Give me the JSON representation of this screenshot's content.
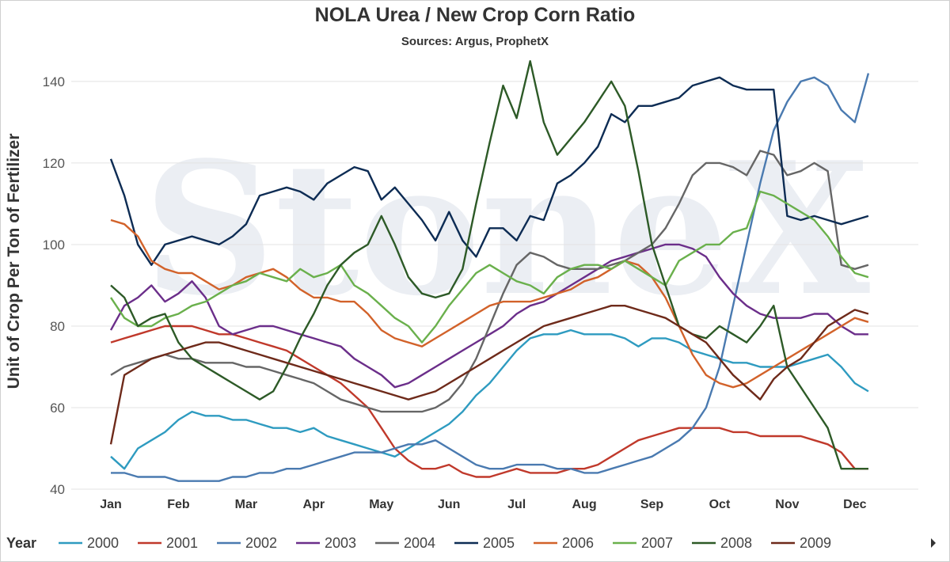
{
  "chart_data": {
    "type": "line",
    "title": "NOLA Urea / New Crop Corn Ratio",
    "subtitle": "Sources: Argus, ProphetX",
    "ylabel": "Unit of Crop Per Ton of Fertilizer",
    "xlabel": "",
    "legend_title": "Year",
    "legend_position": "bottom",
    "grid": "horizontal",
    "ylim": [
      40,
      146
    ],
    "yticks": [
      40,
      60,
      80,
      100,
      120,
      140
    ],
    "ytick_labels": [
      "40",
      "60",
      "80",
      "100",
      "120",
      "140"
    ],
    "x_range": [
      0,
      11.4
    ],
    "categories": [
      "Jan",
      "Feb",
      "Mar",
      "Apr",
      "May",
      "Jun",
      "Jul",
      "Aug",
      "Sep",
      "Oct",
      "Nov",
      "Dec"
    ],
    "watermark": "StoneX",
    "x": [
      0,
      0.2,
      0.4,
      0.6,
      0.8,
      1,
      1.2,
      1.4,
      1.6,
      1.8,
      2,
      2.2,
      2.4,
      2.6,
      2.8,
      3,
      3.2,
      3.4,
      3.6,
      3.8,
      4,
      4.2,
      4.4,
      4.6,
      4.8,
      5,
      5.2,
      5.4,
      5.6,
      5.8,
      6,
      6.2,
      6.4,
      6.6,
      6.8,
      7,
      7.2,
      7.4,
      7.6,
      7.8,
      8,
      8.2,
      8.4,
      8.6,
      8.8,
      9,
      9.2,
      9.4,
      9.6,
      9.8,
      10,
      10.2,
      10.4,
      10.6,
      10.8,
      11,
      11.2
    ],
    "series": [
      {
        "name": "2000",
        "color": "#2e9bc0",
        "values": [
          48,
          45,
          50,
          52,
          54,
          57,
          59,
          58,
          58,
          57,
          57,
          56,
          55,
          55,
          54,
          55,
          53,
          52,
          51,
          50,
          49,
          48,
          50,
          52,
          54,
          56,
          59,
          63,
          66,
          70,
          74,
          77,
          78,
          78,
          79,
          78,
          78,
          78,
          77,
          75,
          77,
          77,
          76,
          74,
          73,
          72,
          71,
          71,
          70,
          70,
          70,
          71,
          72,
          73,
          70,
          66,
          64
        ]
      },
      {
        "name": "2001",
        "color": "#c0392b",
        "values": [
          76,
          77,
          78,
          79,
          80,
          80,
          80,
          79,
          78,
          78,
          77,
          76,
          75,
          74,
          72,
          70,
          68,
          66,
          63,
          60,
          55,
          50,
          47,
          45,
          45,
          46,
          44,
          43,
          43,
          44,
          45,
          44,
          44,
          44,
          45,
          45,
          46,
          48,
          50,
          52,
          53,
          54,
          55,
          55,
          55,
          55,
          54,
          54,
          53,
          53,
          53,
          53,
          52,
          51,
          49,
          45,
          45
        ]
      },
      {
        "name": "2002",
        "color": "#4a7ab0",
        "values": [
          44,
          44,
          43,
          43,
          43,
          42,
          42,
          42,
          42,
          43,
          43,
          44,
          44,
          45,
          45,
          46,
          47,
          48,
          49,
          49,
          49,
          50,
          51,
          51,
          52,
          50,
          48,
          46,
          45,
          45,
          46,
          46,
          46,
          45,
          45,
          44,
          44,
          45,
          46,
          47,
          48,
          50,
          52,
          55,
          60,
          70,
          85,
          100,
          115,
          128,
          135,
          140,
          141,
          139,
          133,
          130,
          142
        ]
      },
      {
        "name": "2003",
        "color": "#6b2e8a",
        "values": [
          79,
          85,
          87,
          90,
          86,
          88,
          91,
          87,
          80,
          78,
          79,
          80,
          80,
          79,
          78,
          77,
          76,
          75,
          72,
          70,
          68,
          65,
          66,
          68,
          70,
          72,
          74,
          76,
          78,
          80,
          83,
          85,
          86,
          88,
          90,
          92,
          94,
          96,
          97,
          98,
          99,
          100,
          100,
          99,
          97,
          92,
          88,
          85,
          83,
          82,
          82,
          82,
          83,
          83,
          80,
          78,
          78
        ]
      },
      {
        "name": "2004",
        "color": "#666666",
        "values": [
          68,
          70,
          71,
          72,
          73,
          72,
          72,
          71,
          71,
          71,
          70,
          70,
          69,
          68,
          67,
          66,
          64,
          62,
          61,
          60,
          59,
          59,
          59,
          59,
          60,
          62,
          66,
          72,
          80,
          88,
          95,
          98,
          97,
          95,
          94,
          94,
          94,
          95,
          96,
          98,
          100,
          104,
          110,
          117,
          120,
          120,
          119,
          117,
          123,
          122,
          117,
          118,
          120,
          118,
          95,
          94,
          95
        ]
      },
      {
        "name": "2005",
        "color": "#0d2c54",
        "values": [
          121,
          112,
          100,
          95,
          100,
          101,
          102,
          101,
          100,
          102,
          105,
          112,
          113,
          114,
          113,
          111,
          115,
          117,
          119,
          118,
          111,
          114,
          110,
          106,
          101,
          108,
          101,
          97,
          104,
          104,
          101,
          107,
          106,
          115,
          117,
          120,
          124,
          132,
          130,
          134,
          134,
          135,
          136,
          139,
          140,
          141,
          139,
          138,
          138,
          138,
          107,
          106,
          107,
          106,
          105,
          106,
          107
        ]
      },
      {
        "name": "2006",
        "color": "#d2622a",
        "values": [
          106,
          105,
          102,
          96,
          94,
          93,
          93,
          91,
          89,
          90,
          92,
          93,
          94,
          92,
          89,
          87,
          87,
          86,
          86,
          83,
          79,
          77,
          76,
          75,
          77,
          79,
          81,
          83,
          85,
          86,
          86,
          86,
          87,
          88,
          89,
          91,
          92,
          94,
          96,
          95,
          92,
          87,
          80,
          73,
          68,
          66,
          65,
          66,
          68,
          70,
          72,
          74,
          76,
          78,
          80,
          82,
          81
        ]
      },
      {
        "name": "2007",
        "color": "#6ab04c",
        "values": [
          87,
          82,
          80,
          80,
          82,
          83,
          85,
          86,
          88,
          90,
          91,
          93,
          92,
          91,
          94,
          92,
          93,
          95,
          90,
          88,
          85,
          82,
          80,
          76,
          80,
          85,
          89,
          93,
          95,
          93,
          91,
          90,
          88,
          92,
          94,
          95,
          95,
          94,
          96,
          94,
          92,
          90,
          96,
          98,
          100,
          100,
          103,
          104,
          113,
          112,
          110,
          108,
          106,
          102,
          97,
          93,
          92
        ]
      },
      {
        "name": "2008",
        "color": "#2d5a27",
        "values": [
          90,
          87,
          80,
          82,
          83,
          76,
          72,
          70,
          68,
          66,
          64,
          62,
          64,
          70,
          77,
          83,
          90,
          95,
          98,
          100,
          107,
          100,
          92,
          88,
          87,
          88,
          94,
          110,
          125,
          139,
          131,
          145,
          130,
          122,
          126,
          130,
          135,
          140,
          134,
          118,
          100,
          90,
          80,
          78,
          77,
          80,
          78,
          76,
          80,
          85,
          70,
          65,
          60,
          55,
          45,
          45,
          45
        ]
      },
      {
        "name": "2009",
        "color": "#6e2a1a",
        "values": [
          51,
          68,
          70,
          72,
          73,
          74,
          75,
          76,
          76,
          75,
          74,
          73,
          72,
          71,
          70,
          69,
          68,
          67,
          66,
          65,
          64,
          63,
          62,
          63,
          64,
          66,
          68,
          70,
          72,
          74,
          76,
          78,
          80,
          81,
          82,
          83,
          84,
          85,
          85,
          84,
          83,
          82,
          80,
          78,
          76,
          72,
          68,
          65,
          62,
          67,
          70,
          72,
          76,
          80,
          82,
          84,
          83
        ]
      }
    ]
  }
}
